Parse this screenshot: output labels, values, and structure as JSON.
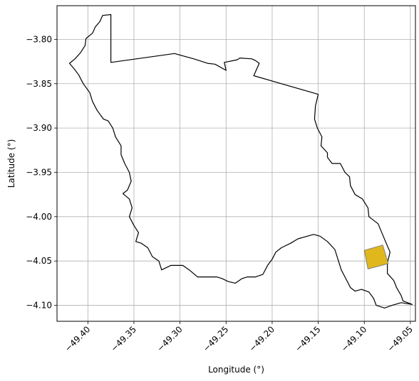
{
  "chart_data": {
    "type": "map",
    "xlabel": "Longitude (°)",
    "ylabel": "Latitude (°)",
    "xlim": [
      -49.4335,
      -49.0445
    ],
    "ylim": [
      -4.118,
      -3.762
    ],
    "grid": true,
    "xticks": [
      -49.4,
      -49.35,
      -49.3,
      -49.25,
      -49.2,
      -49.15,
      -49.1,
      -49.05
    ],
    "xtick_labels": [
      "−49.40",
      "−49.35",
      "−49.30",
      "−49.25",
      "−49.20",
      "−49.15",
      "−49.10",
      "−49.05"
    ],
    "yticks": [
      -3.8,
      -3.85,
      -3.9,
      -3.95,
      -4.0,
      -4.05,
      -4.1
    ],
    "ytick_labels": [
      "−3.80",
      "−3.85",
      "−3.90",
      "−3.95",
      "−4.00",
      "−4.05",
      "−4.10"
    ],
    "colors": {
      "boundary": "#000000",
      "highlight_fill": "#e0b81e",
      "highlight_edge": "#808080",
      "grid": "#b0b0b0"
    },
    "boundary": [
      [
        -49.384,
        -3.773
      ],
      [
        -49.375,
        -3.772
      ],
      [
        -49.375,
        -3.826
      ],
      [
        -49.306,
        -3.816
      ],
      [
        -49.285,
        -3.822
      ],
      [
        -49.27,
        -3.827
      ],
      [
        -49.262,
        -3.828
      ],
      [
        -49.25,
        -3.835
      ],
      [
        -49.252,
        -3.826
      ],
      [
        -49.238,
        -3.823
      ],
      [
        -49.235,
        -3.821
      ],
      [
        -49.222,
        -3.822
      ],
      [
        -49.218,
        -3.824
      ],
      [
        -49.214,
        -3.827
      ],
      [
        -49.22,
        -3.841
      ],
      [
        -49.15,
        -3.862
      ],
      [
        -49.153,
        -3.875
      ],
      [
        -49.154,
        -3.89
      ],
      [
        -49.151,
        -3.9
      ],
      [
        -49.146,
        -3.91
      ],
      [
        -49.147,
        -3.92
      ],
      [
        -49.14,
        -3.928
      ],
      [
        -49.14,
        -3.933
      ],
      [
        -49.135,
        -3.94
      ],
      [
        -49.126,
        -3.94
      ],
      [
        -49.121,
        -3.95
      ],
      [
        -49.116,
        -3.955
      ],
      [
        -49.115,
        -3.965
      ],
      [
        -49.11,
        -3.975
      ],
      [
        -49.102,
        -3.98
      ],
      [
        -49.096,
        -3.99
      ],
      [
        -49.095,
        -4.0
      ],
      [
        -49.085,
        -4.008
      ],
      [
        -49.081,
        -4.018
      ],
      [
        -49.077,
        -4.028
      ],
      [
        -49.072,
        -4.04
      ],
      [
        -49.075,
        -4.052
      ],
      [
        -49.075,
        -4.064
      ],
      [
        -49.068,
        -4.072
      ],
      [
        -49.065,
        -4.08
      ],
      [
        -49.06,
        -4.089
      ],
      [
        -49.058,
        -4.095
      ],
      [
        -49.048,
        -4.099
      ],
      [
        -49.06,
        -4.097
      ],
      [
        -49.07,
        -4.1
      ],
      [
        -49.078,
        -4.103
      ],
      [
        -49.087,
        -4.1
      ],
      [
        -49.09,
        -4.092
      ],
      [
        -49.095,
        -4.085
      ],
      [
        -49.103,
        -4.082
      ],
      [
        -49.11,
        -4.084
      ],
      [
        -49.115,
        -4.08
      ],
      [
        -49.12,
        -4.07
      ],
      [
        -49.125,
        -4.06
      ],
      [
        -49.128,
        -4.05
      ],
      [
        -49.132,
        -4.037
      ],
      [
        -49.14,
        -4.028
      ],
      [
        -49.148,
        -4.022
      ],
      [
        -49.155,
        -4.02
      ],
      [
        -49.162,
        -4.022
      ],
      [
        -49.172,
        -4.025
      ],
      [
        -49.18,
        -4.03
      ],
      [
        -49.19,
        -4.035
      ],
      [
        -49.196,
        -4.04
      ],
      [
        -49.2,
        -4.048
      ],
      [
        -49.205,
        -4.055
      ],
      [
        -49.21,
        -4.065
      ],
      [
        -49.218,
        -4.068
      ],
      [
        -49.227,
        -4.068
      ],
      [
        -49.233,
        -4.07
      ],
      [
        -49.24,
        -4.075
      ],
      [
        -49.248,
        -4.073
      ],
      [
        -49.254,
        -4.07
      ],
      [
        -49.26,
        -4.068
      ],
      [
        -49.27,
        -4.068
      ],
      [
        -49.281,
        -4.068
      ],
      [
        -49.29,
        -4.06
      ],
      [
        -49.297,
        -4.055
      ],
      [
        -49.31,
        -4.055
      ],
      [
        -49.32,
        -4.06
      ],
      [
        -49.323,
        -4.05
      ],
      [
        -49.33,
        -4.045
      ],
      [
        -49.335,
        -4.035
      ],
      [
        -49.342,
        -4.03
      ],
      [
        -49.348,
        -4.028
      ],
      [
        -49.345,
        -4.018
      ],
      [
        -49.35,
        -4.01
      ],
      [
        -49.355,
        -4.0
      ],
      [
        -49.352,
        -3.99
      ],
      [
        -49.355,
        -3.98
      ],
      [
        -49.362,
        -3.974
      ],
      [
        -49.357,
        -3.97
      ],
      [
        -49.353,
        -3.96
      ],
      [
        -49.355,
        -3.95
      ],
      [
        -49.36,
        -3.94
      ],
      [
        -49.364,
        -3.93
      ],
      [
        -49.364,
        -3.92
      ],
      [
        -49.37,
        -3.91
      ],
      [
        -49.373,
        -3.9
      ],
      [
        -49.378,
        -3.892
      ],
      [
        -49.383,
        -3.89
      ],
      [
        -49.39,
        -3.88
      ],
      [
        -49.395,
        -3.87
      ],
      [
        -49.398,
        -3.86
      ],
      [
        -49.405,
        -3.85
      ],
      [
        -49.41,
        -3.84
      ],
      [
        -49.415,
        -3.833
      ],
      [
        -49.42,
        -3.827
      ],
      [
        -49.414,
        -3.822
      ],
      [
        -49.408,
        -3.815
      ],
      [
        -49.403,
        -3.807
      ],
      [
        -49.402,
        -3.799
      ],
      [
        -49.395,
        -3.793
      ],
      [
        -49.392,
        -3.786
      ],
      [
        -49.387,
        -3.78
      ],
      [
        -49.384,
        -3.773
      ]
    ],
    "highlight": [
      [
        -49.1,
        -4.038
      ],
      [
        -49.08,
        -4.032
      ],
      [
        -49.074,
        -4.053
      ],
      [
        -49.096,
        -4.059
      ]
    ]
  }
}
